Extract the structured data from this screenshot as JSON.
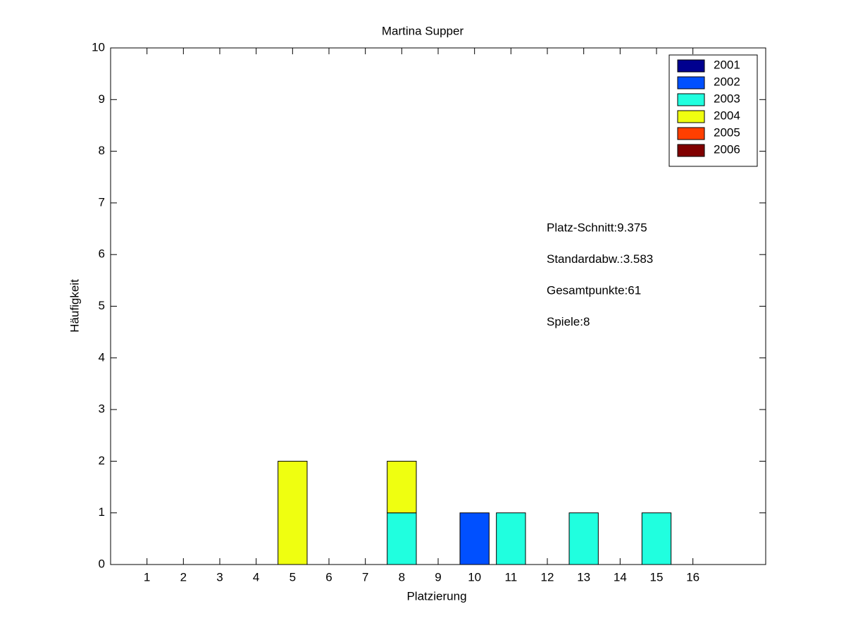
{
  "chart_data": {
    "type": "bar",
    "stacked": true,
    "title": "Martina Supper",
    "x_label": "Platzierung",
    "y_label": "Häufigkeit",
    "x": [
      1,
      2,
      3,
      4,
      5,
      6,
      7,
      8,
      9,
      10,
      11,
      12,
      13,
      14,
      15,
      16
    ],
    "xlim": [
      0,
      18
    ],
    "xticks": [
      1,
      2,
      3,
      4,
      5,
      6,
      7,
      8,
      9,
      10,
      11,
      12,
      13,
      14,
      15,
      16
    ],
    "ylim": [
      0,
      10
    ],
    "yticks": [
      0,
      1,
      2,
      3,
      4,
      5,
      6,
      7,
      8,
      9,
      10
    ],
    "legend": "upper right",
    "series": [
      {
        "name": "2001",
        "color": "#00008f",
        "values": [
          0,
          0,
          0,
          0,
          0,
          0,
          0,
          0,
          0,
          0,
          0,
          0,
          0,
          0,
          0,
          0
        ]
      },
      {
        "name": "2002",
        "color": "#0050ff",
        "values": [
          0,
          0,
          0,
          0,
          0,
          0,
          0,
          0,
          0,
          1,
          0,
          0,
          0,
          0,
          0,
          0
        ]
      },
      {
        "name": "2003",
        "color": "#20ffdf",
        "values": [
          0,
          0,
          0,
          0,
          0,
          0,
          0,
          1,
          0,
          0,
          1,
          0,
          1,
          0,
          1,
          0
        ]
      },
      {
        "name": "2004",
        "color": "#efff10",
        "values": [
          0,
          0,
          0,
          0,
          2,
          0,
          0,
          1,
          0,
          0,
          0,
          0,
          0,
          0,
          0,
          0
        ]
      },
      {
        "name": "2005",
        "color": "#ff3f00",
        "values": [
          0,
          0,
          0,
          0,
          0,
          0,
          0,
          0,
          0,
          0,
          0,
          0,
          0,
          0,
          0,
          0
        ]
      },
      {
        "name": "2006",
        "color": "#800000",
        "values": [
          0,
          0,
          0,
          0,
          0,
          0,
          0,
          0,
          0,
          0,
          0,
          0,
          0,
          0,
          0,
          0
        ]
      }
    ],
    "annotations": [
      "Platz-Schnitt:9.375",
      "Standardabw.:3.583",
      "Gesamtpunkte:61",
      "Spiele:8"
    ]
  }
}
